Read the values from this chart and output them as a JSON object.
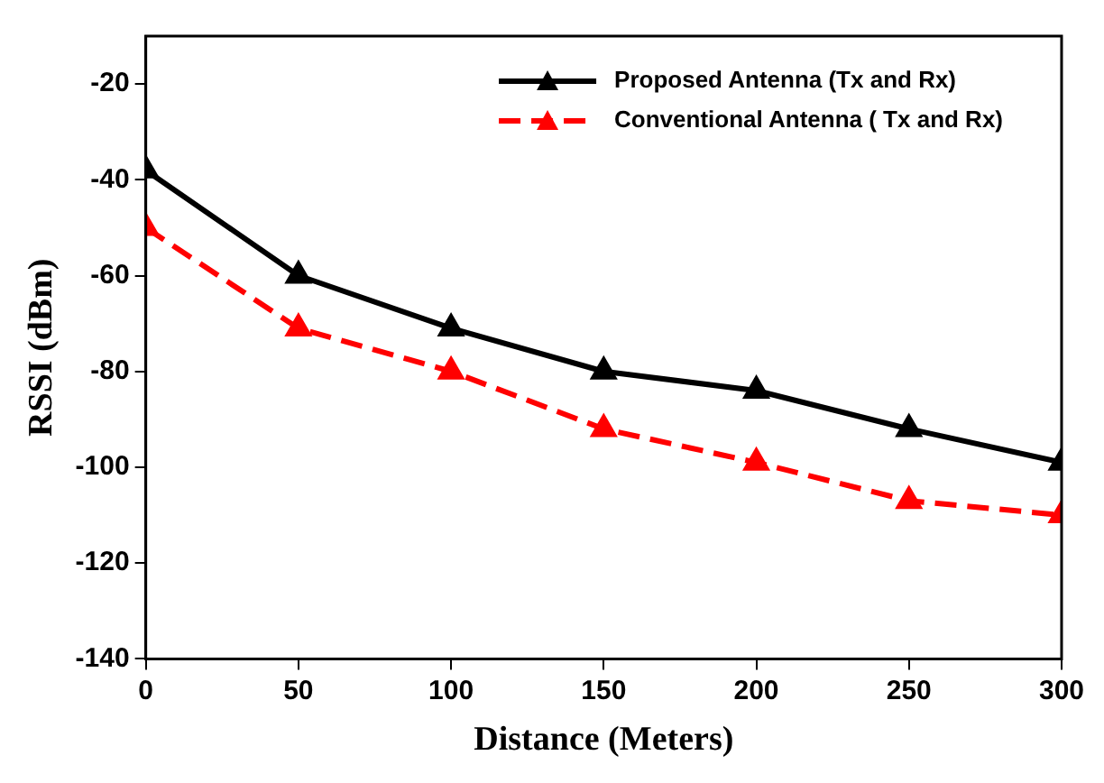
{
  "chart_data": {
    "type": "line",
    "xlabel": "Distance (Meters)",
    "ylabel": "RSSI (dBm)",
    "x": [
      0,
      50,
      100,
      150,
      200,
      250,
      300
    ],
    "series": [
      {
        "name": "Proposed Antenna (Tx and Rx)",
        "color": "#000000",
        "values": [
          -38,
          -60,
          -71,
          -80,
          -84,
          -92,
          -99
        ],
        "line_style": "solid"
      },
      {
        "name": "Conventional Antenna ( Tx and Rx)",
        "color": "#ff0000",
        "values": [
          -50,
          -71,
          -80,
          -92,
          -99,
          -107,
          -110
        ],
        "line_style": "dashed"
      }
    ],
    "xlim": [
      0,
      300
    ],
    "xticks": [
      0,
      50,
      100,
      150,
      200,
      250,
      300
    ],
    "ylim": [
      -140,
      -10
    ],
    "yticks": [
      -140,
      -120,
      -100,
      -80,
      -60,
      -40,
      -20
    ],
    "grid": false,
    "legend": "top right",
    "marker": "triangle"
  }
}
